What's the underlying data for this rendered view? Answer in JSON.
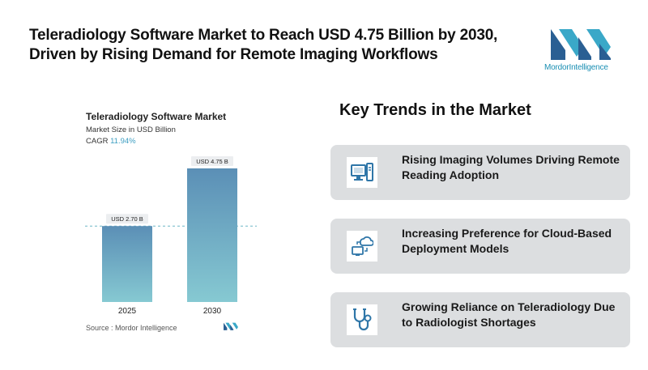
{
  "headline": {
    "line1": "Teleradiology Software Market to Reach USD 4.75 Billion by 2030,",
    "line2": "Driven by Rising Demand for Remote Imaging Workflows"
  },
  "logo": {
    "part1": "Mordor",
    "part2": "Intelligence"
  },
  "chart_header": {
    "title": "Teleradiology Software Market",
    "subtitle": "Market Size in USD Billion",
    "cagr_label": "CAGR",
    "cagr_value": "11.94%"
  },
  "chart_data": {
    "type": "bar",
    "title": "Teleradiology Software Market",
    "ylabel": "Market Size in USD Billion",
    "categories": [
      "2025",
      "2030"
    ],
    "values": [
      2.7,
      4.75
    ],
    "data_labels": [
      "USD 2.70 B",
      "USD 4.75 B"
    ],
    "reference_line": 2.7,
    "ylim": [
      0,
      4.75
    ],
    "grid": false,
    "colors": {
      "bar_top": "#5b8fb6",
      "bar_bottom": "#86c9d2",
      "label_bg": "#eceef0",
      "reference_line": "#6fb7c7"
    }
  },
  "source": "Source :  Mordor Intelligence",
  "trends": {
    "title": "Key Trends in the Market",
    "items": [
      {
        "icon": "computer-icon",
        "text": "Rising Imaging Volumes Driving Remote Reading Adoption"
      },
      {
        "icon": "cloud-computer-icon",
        "text": "Increasing Preference for Cloud-Based Deployment Models"
      },
      {
        "icon": "stethoscope-icon",
        "text": "Growing Reliance on Teleradiology Due to Radiologist Shortages"
      }
    ]
  },
  "colors": {
    "brand": "#1b8fb3",
    "icon_blue": "#2f76a8",
    "card_bg": "#dcdee0"
  }
}
